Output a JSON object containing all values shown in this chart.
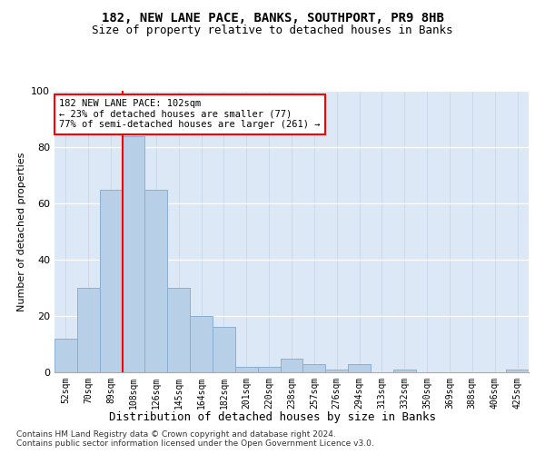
{
  "title1": "182, NEW LANE PACE, BANKS, SOUTHPORT, PR9 8HB",
  "title2": "Size of property relative to detached houses in Banks",
  "xlabel": "Distribution of detached houses by size in Banks",
  "ylabel": "Number of detached properties",
  "annotation_line1": "182 NEW LANE PACE: 102sqm",
  "annotation_line2": "← 23% of detached houses are smaller (77)",
  "annotation_line3": "77% of semi-detached houses are larger (261) →",
  "categories": [
    "52sqm",
    "70sqm",
    "89sqm",
    "108sqm",
    "126sqm",
    "145sqm",
    "164sqm",
    "182sqm",
    "201sqm",
    "220sqm",
    "238sqm",
    "257sqm",
    "276sqm",
    "294sqm",
    "313sqm",
    "332sqm",
    "350sqm",
    "369sqm",
    "388sqm",
    "406sqm",
    "425sqm"
  ],
  "values": [
    12,
    30,
    65,
    84,
    65,
    30,
    20,
    16,
    2,
    2,
    5,
    3,
    1,
    3,
    0,
    1,
    0,
    0,
    0,
    0,
    1
  ],
  "bar_color": "#b8cfe8",
  "bar_edgecolor": "#8aafd4",
  "red_line_x": 2.5,
  "ylim": [
    0,
    100
  ],
  "yticks": [
    0,
    20,
    40,
    60,
    80,
    100
  ],
  "background_color": "#dce8f5",
  "grid_color": "#c5d5e8",
  "footer1": "Contains HM Land Registry data © Crown copyright and database right 2024.",
  "footer2": "Contains public sector information licensed under the Open Government Licence v3.0."
}
